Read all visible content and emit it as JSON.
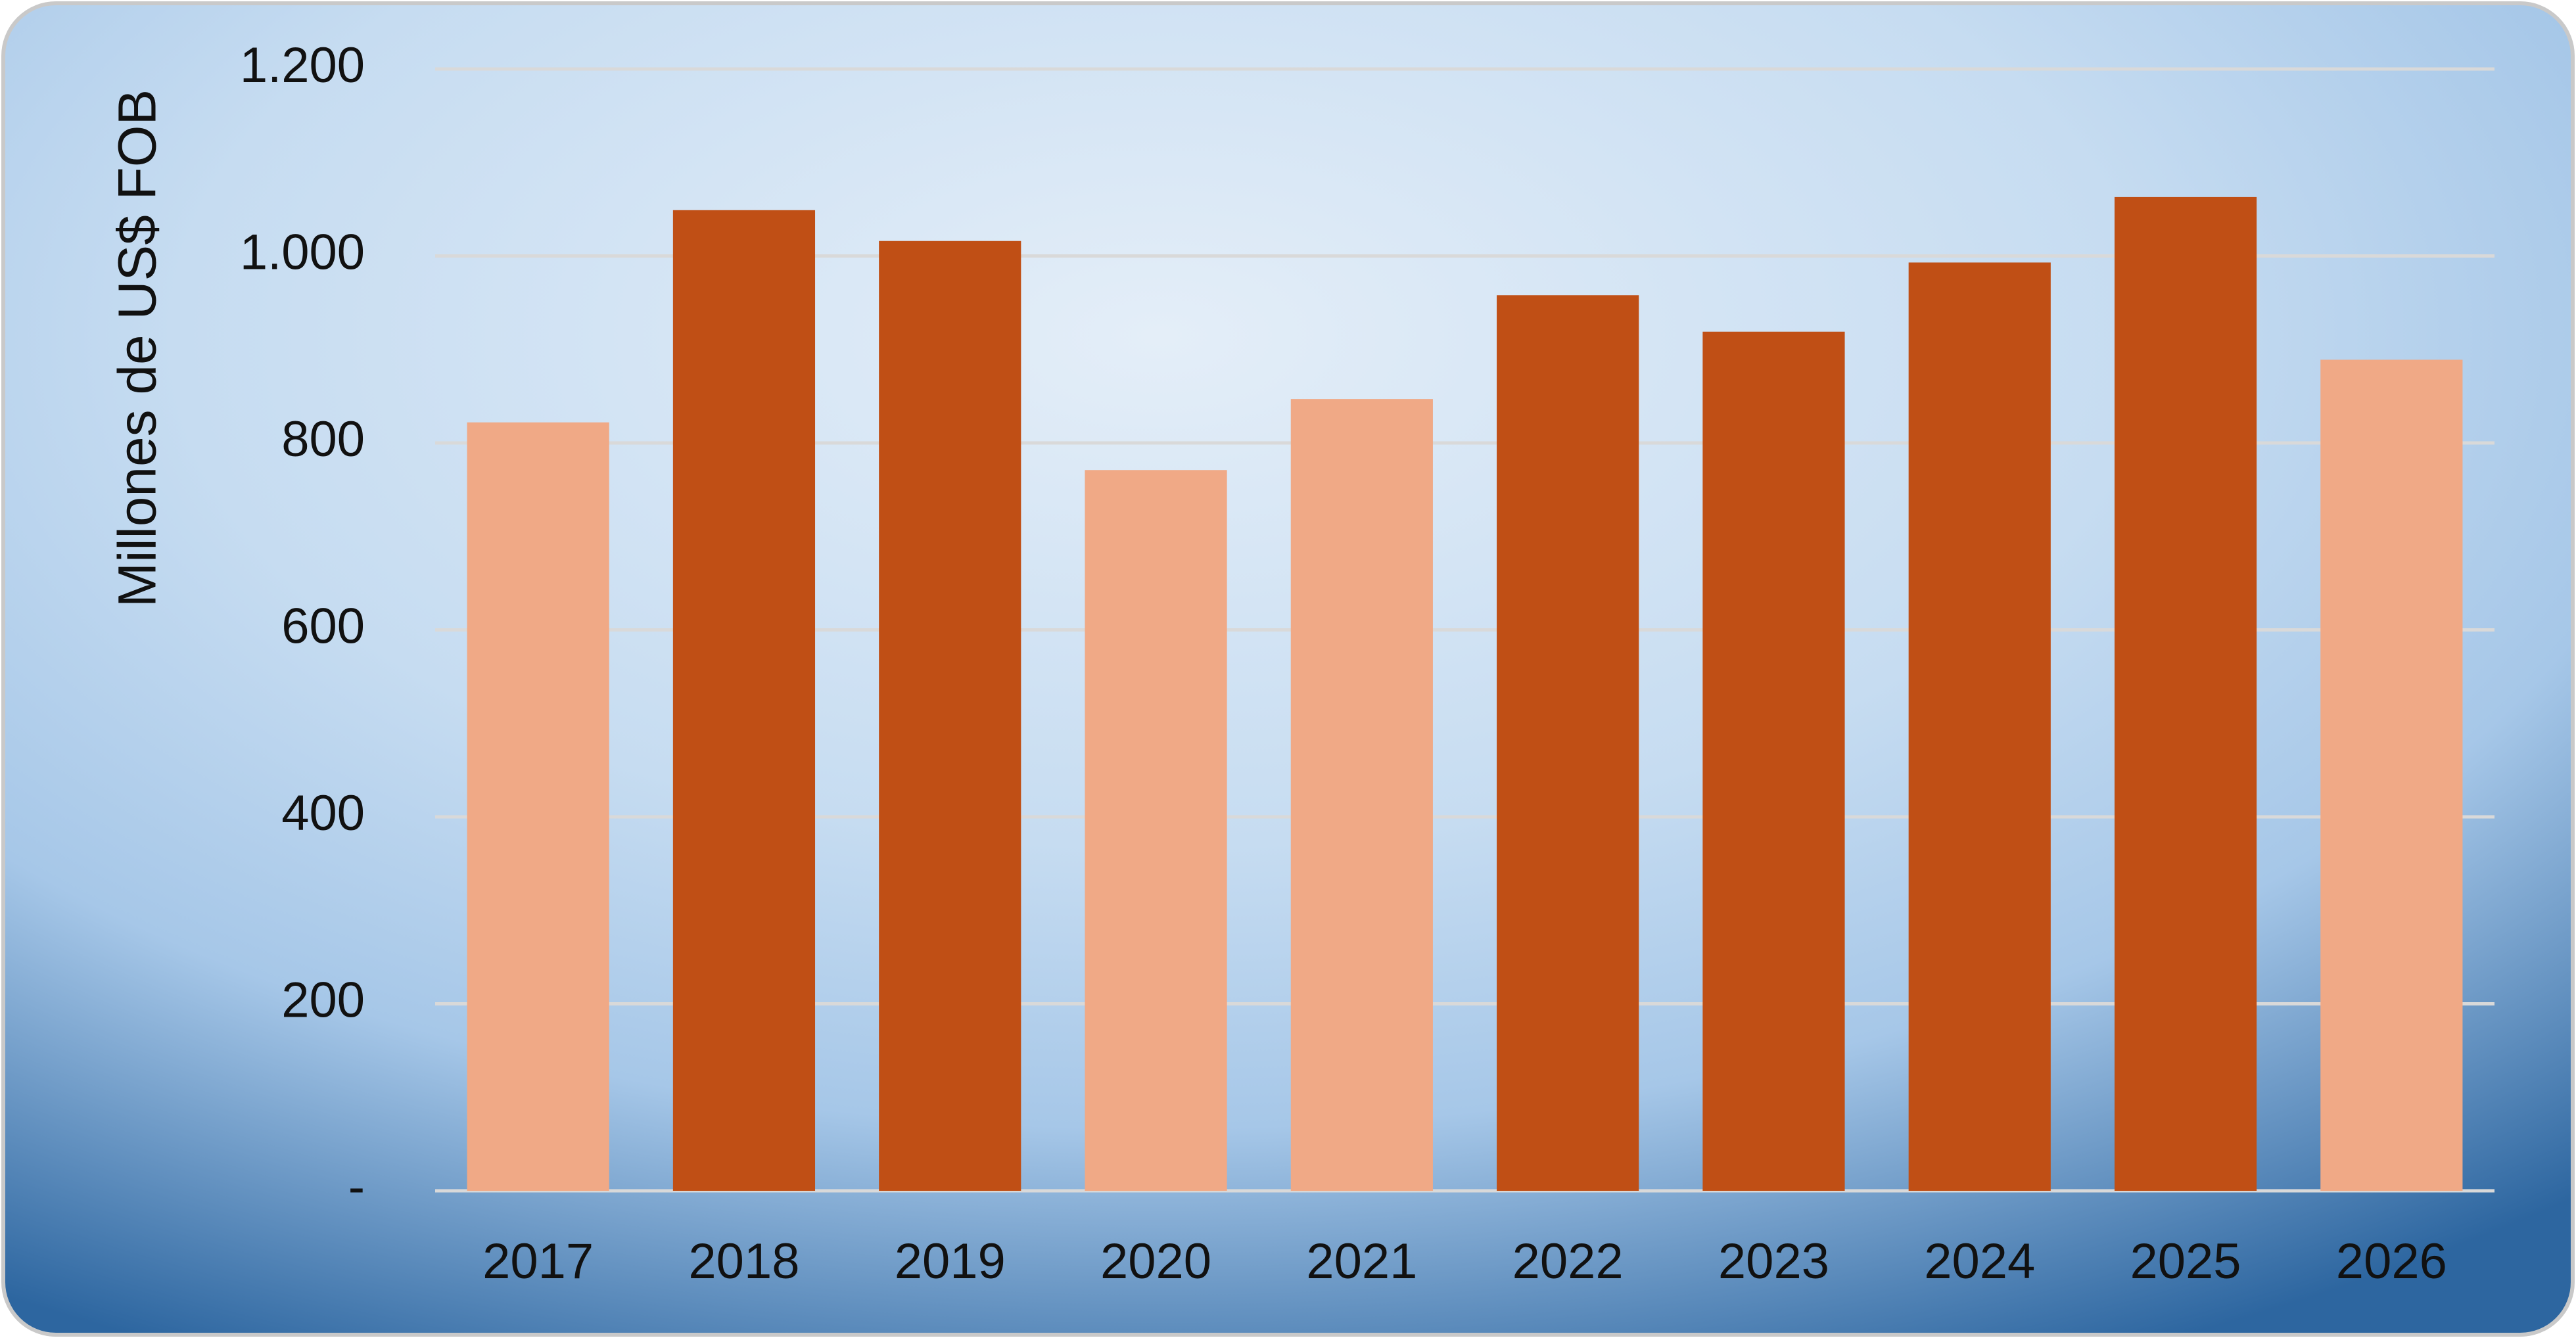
{
  "chart_data": {
    "type": "bar",
    "y_label": "Millones de US$ FOB",
    "categories": [
      "2017",
      "2018",
      "2019",
      "2020",
      "2021",
      "2022",
      "2023",
      "2024",
      "2025",
      "2026"
    ],
    "values": [
      822,
      1049,
      1016,
      771,
      847,
      958,
      919,
      993,
      1063,
      889
    ],
    "colors": [
      "#f0a986",
      "#c04f15",
      "#c04f15",
      "#f0a986",
      "#f0a986",
      "#c04f15",
      "#c04f15",
      "#c04f15",
      "#c04f15",
      "#f0a986"
    ],
    "ylim": [
      0,
      1200
    ],
    "yticks": [
      {
        "value": 0,
        "label": "-"
      },
      200,
      400,
      600,
      800,
      {
        "value": 1000,
        "label": "1.000"
      },
      {
        "value": 1200,
        "label": "1.200"
      }
    ],
    "grid": true
  }
}
